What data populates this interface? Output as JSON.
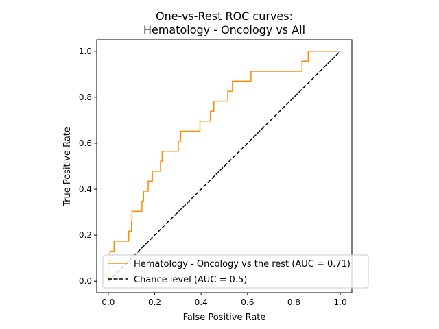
{
  "chart_data": {
    "type": "line",
    "title_lines": [
      "One-vs-Rest ROC curves:",
      "Hematology - Oncology vs All"
    ],
    "xlabel": "False Positive Rate",
    "ylabel": "True Positive Rate",
    "xlim": [
      -0.05,
      1.05
    ],
    "ylim": [
      -0.05,
      1.05
    ],
    "xticks": [
      "0.0",
      "0.2",
      "0.4",
      "0.6",
      "0.8",
      "1.0"
    ],
    "yticks": [
      "0.0",
      "0.2",
      "0.4",
      "0.6",
      "0.8",
      "1.0"
    ],
    "grid": false,
    "legend_position": "lower-right",
    "series": [
      {
        "name": "Hematology - Oncology vs the rest (AUC = 0.71)",
        "color": "#ff8c00",
        "style": "solid",
        "x": [
          0.0,
          0.0,
          0.0,
          0.007,
          0.007,
          0.025,
          0.025,
          0.088,
          0.088,
          0.1,
          0.1,
          0.102,
          0.102,
          0.145,
          0.145,
          0.152,
          0.152,
          0.172,
          0.172,
          0.19,
          0.19,
          0.225,
          0.225,
          0.232,
          0.232,
          0.302,
          0.302,
          0.312,
          0.312,
          0.395,
          0.395,
          0.44,
          0.44,
          0.455,
          0.455,
          0.515,
          0.515,
          0.535,
          0.535,
          0.615,
          0.615,
          0.835,
          0.835,
          0.862,
          0.862,
          1.0
        ],
        "y": [
          0.0,
          0.087,
          0.087,
          0.087,
          0.13,
          0.13,
          0.174,
          0.174,
          0.217,
          0.217,
          0.261,
          0.261,
          0.304,
          0.304,
          0.348,
          0.348,
          0.391,
          0.391,
          0.435,
          0.435,
          0.478,
          0.478,
          0.522,
          0.522,
          0.565,
          0.565,
          0.609,
          0.609,
          0.652,
          0.652,
          0.696,
          0.696,
          0.739,
          0.739,
          0.783,
          0.783,
          0.826,
          0.826,
          0.87,
          0.87,
          0.913,
          0.913,
          0.957,
          0.957,
          1.0,
          1.0
        ]
      },
      {
        "name": "Chance level (AUC = 0.5)",
        "color": "#000000",
        "style": "dashed",
        "x": [
          0.0,
          1.0
        ],
        "y": [
          0.0,
          1.0
        ]
      }
    ]
  }
}
